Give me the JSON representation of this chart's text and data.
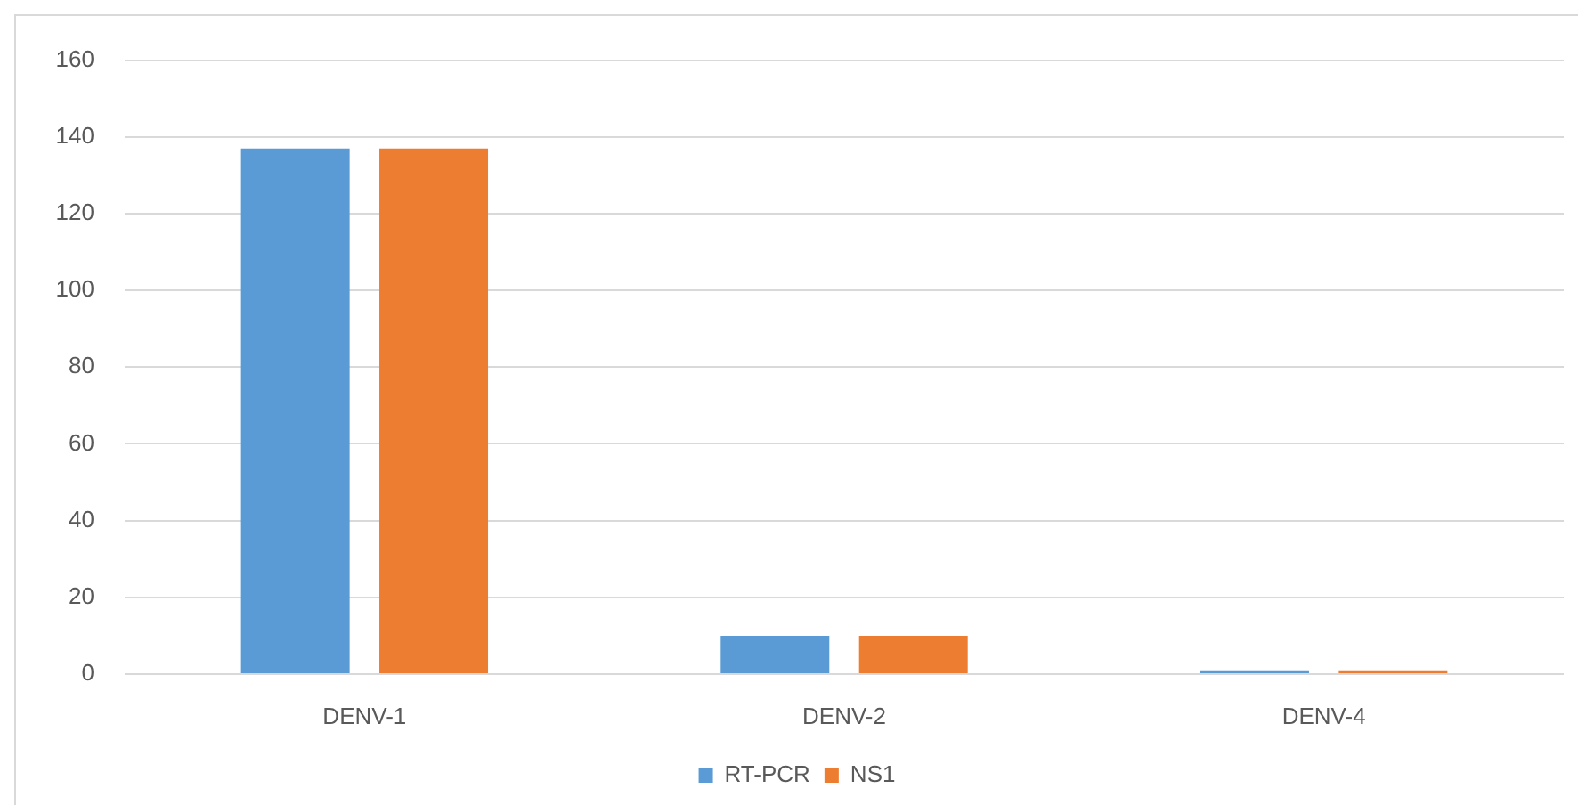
{
  "chart_data": {
    "type": "bar",
    "categories": [
      "DENV-1",
      "DENV-2",
      "DENV-4"
    ],
    "series": [
      {
        "name": "RT-PCR",
        "color": "#5b9bd5",
        "values": [
          137,
          10,
          1
        ]
      },
      {
        "name": "NS1",
        "color": "#ed7d31",
        "values": [
          137,
          10,
          1
        ]
      }
    ],
    "ylim": [
      0,
      160
    ],
    "yticks": [
      0,
      20,
      40,
      60,
      80,
      100,
      120,
      140,
      160
    ],
    "grid": "y",
    "legend": "bottom"
  }
}
